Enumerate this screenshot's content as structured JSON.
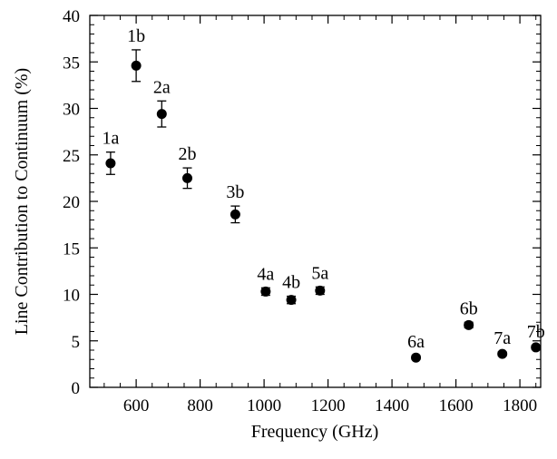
{
  "chart_data": {
    "type": "scatter",
    "xlabel": "Frequency (GHz)",
    "ylabel": "Line Contribution to Continuum (%)",
    "xlim": [
      455,
      1865
    ],
    "ylim": [
      0,
      40
    ],
    "x_ticks": [
      600,
      800,
      1000,
      1200,
      1400,
      1600,
      1800
    ],
    "y_ticks": [
      0,
      5,
      10,
      15,
      20,
      25,
      30,
      35,
      40
    ],
    "grid": false,
    "legend": "none",
    "marker_color": "#000000",
    "points": [
      {
        "label": "1a",
        "x": 520,
        "y": 24.1,
        "err": 1.2
      },
      {
        "label": "1b",
        "x": 600,
        "y": 34.6,
        "err": 1.7
      },
      {
        "label": "2a",
        "x": 680,
        "y": 29.4,
        "err": 1.4
      },
      {
        "label": "2b",
        "x": 760,
        "y": 22.5,
        "err": 1.1
      },
      {
        "label": "3b",
        "x": 910,
        "y": 18.6,
        "err": 0.9
      },
      {
        "label": "4a",
        "x": 1005,
        "y": 10.3,
        "err": 0.4
      },
      {
        "label": "4b",
        "x": 1085,
        "y": 9.4,
        "err": 0.4
      },
      {
        "label": "5a",
        "x": 1175,
        "y": 10.4,
        "err": 0.4
      },
      {
        "label": "6a",
        "x": 1475,
        "y": 3.2,
        "err": 0.2
      },
      {
        "label": "6b",
        "x": 1640,
        "y": 6.7,
        "err": 0.3
      },
      {
        "label": "7a",
        "x": 1745,
        "y": 3.6,
        "err": 0.2
      },
      {
        "label": "7b",
        "x": 1850,
        "y": 4.3,
        "err": 0.2
      }
    ]
  }
}
